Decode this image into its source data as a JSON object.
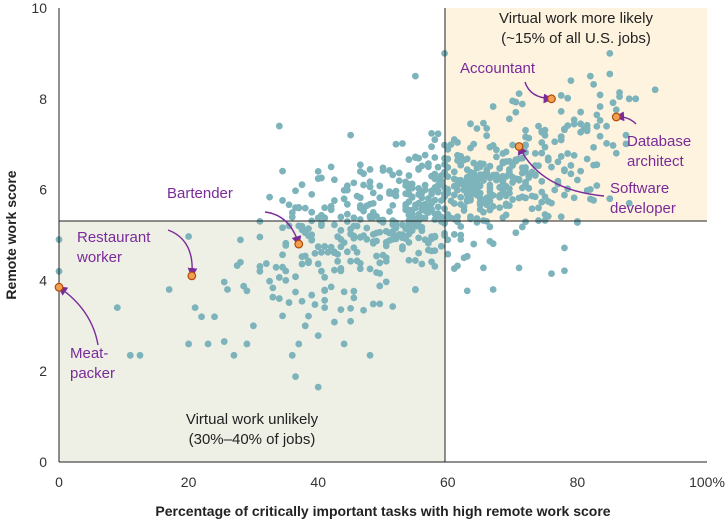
{
  "chart_data": {
    "type": "scatter",
    "xlabel": "Percentage of critically important tasks with high remote work score",
    "ylabel": "Remote work score",
    "xlim": [
      0,
      100
    ],
    "ylim": [
      0,
      10
    ],
    "x_ticks": [
      "0",
      "20",
      "40",
      "60",
      "80",
      "100%"
    ],
    "y_ticks": [
      "0",
      "2",
      "4",
      "6",
      "8",
      "10"
    ],
    "grid": false,
    "threshold_x": 60,
    "threshold_y": 5.3,
    "colors": {
      "points": "#7db3bb",
      "highlight_fill": "#f0a050",
      "highlight_stroke": "#b34a0a",
      "annotation": "#7a2a99",
      "region_likely": "#fdf3df",
      "region_unlikely": "#eef0e6",
      "axis": "#222222"
    },
    "regions": [
      {
        "name": "likely",
        "line1": "Virtual work more likely",
        "line2": "(~15% of all U.S. jobs)"
      },
      {
        "name": "unlikely",
        "line1": "Virtual work unlikely",
        "line2": "(30%–40% of jobs)"
      }
    ],
    "highlighted": [
      {
        "lines": [
          "Accountant"
        ],
        "x": 76,
        "y": 8.0
      },
      {
        "lines": [
          "Database",
          "architect"
        ],
        "x": 86,
        "y": 7.6
      },
      {
        "lines": [
          "Software",
          "developer"
        ],
        "x": 71,
        "y": 6.95
      },
      {
        "lines": [
          "Bartender"
        ],
        "x": 37,
        "y": 4.8
      },
      {
        "lines": [
          "Restaurant",
          "worker"
        ],
        "x": 20.5,
        "y": 4.1
      },
      {
        "lines": [
          "Meat-",
          "packer"
        ],
        "x": 0,
        "y": 3.85
      }
    ],
    "points_explicit": [
      [
        0,
        4.9
      ],
      [
        0,
        4.2
      ],
      [
        9,
        3.4
      ],
      [
        11,
        2.35
      ],
      [
        12.5,
        2.35
      ],
      [
        17,
        3.8
      ],
      [
        20,
        2.6
      ],
      [
        21,
        3.4
      ],
      [
        22,
        3.2
      ],
      [
        24,
        3.2
      ],
      [
        23,
        2.6
      ],
      [
        26,
        3.8
      ],
      [
        27,
        2.35
      ],
      [
        29,
        2.6
      ],
      [
        30,
        3.0
      ],
      [
        31,
        4.2
      ],
      [
        31,
        5.3
      ],
      [
        34,
        3.6
      ],
      [
        34,
        7.4
      ],
      [
        36,
        2.35
      ],
      [
        37,
        2.6
      ],
      [
        40,
        1.65
      ],
      [
        44,
        2.6
      ],
      [
        48,
        2.35
      ],
      [
        55,
        8.5
      ],
      [
        59.5,
        9.0
      ],
      [
        67,
        3.8
      ],
      [
        76,
        4.15
      ],
      [
        85,
        9.0
      ],
      [
        92,
        8.2
      ],
      [
        88,
        8.0
      ],
      [
        89,
        8.0
      ],
      [
        82,
        8.5
      ],
      [
        79,
        8.4
      ],
      [
        80,
        5.3
      ],
      [
        88,
        5.7
      ],
      [
        86,
        6.8
      ],
      [
        85,
        5.8
      ],
      [
        66,
        5.3
      ],
      [
        62,
        5.0
      ],
      [
        42,
        6.5
      ],
      [
        45,
        7.2
      ],
      [
        52,
        7.0
      ],
      [
        58,
        7.1
      ],
      [
        64,
        4.8
      ],
      [
        41,
        3.4
      ],
      [
        38,
        3.0
      ],
      [
        45,
        3.1
      ],
      [
        35,
        4.0
      ],
      [
        28,
        4.4
      ]
    ],
    "clusters": [
      {
        "n": 260,
        "cx": 50,
        "sx": 9,
        "cy": 5.2,
        "sy": 0.65,
        "seed": 7
      },
      {
        "n": 220,
        "cx": 63,
        "sx": 6,
        "cy": 6.05,
        "sy": 0.45,
        "seed": 19
      },
      {
        "n": 90,
        "cx": 73,
        "sx": 6,
        "cy": 6.6,
        "sy": 0.7,
        "seed": 31
      },
      {
        "n": 60,
        "cx": 38,
        "sx": 8,
        "cy": 4.3,
        "sy": 0.9,
        "seed": 43
      },
      {
        "n": 40,
        "cx": 80,
        "sx": 5,
        "cy": 7.1,
        "sy": 0.6,
        "seed": 57
      }
    ]
  }
}
